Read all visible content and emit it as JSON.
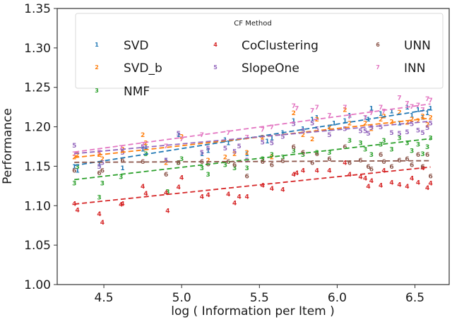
{
  "chart_data": {
    "type": "scatter",
    "title": "",
    "xlabel": "log ( Information per Item )",
    "ylabel": "Performance",
    "xlim": [
      4.2,
      6.72
    ],
    "ylim": [
      1.0,
      1.35
    ],
    "xticks": [
      4.5,
      5.0,
      5.5,
      6.0,
      6.5
    ],
    "xtick_labels": [
      "4.5",
      "5.0",
      "5.5",
      "6.0",
      "6.5"
    ],
    "yticks": [
      1.0,
      1.05,
      1.1,
      1.15,
      1.2,
      1.25,
      1.3,
      1.35
    ],
    "ytick_labels": [
      "1.00",
      "1.05",
      "1.10",
      "1.15",
      "1.20",
      "1.25",
      "1.30",
      "1.35"
    ],
    "grid": false,
    "legend": {
      "title": "CF Method",
      "placement": "top",
      "columns": 3
    },
    "series": [
      {
        "name": "SVD",
        "marker": "1",
        "color": "#1f77b4",
        "trend": {
          "x": [
            4.31,
            6.6
          ],
          "y": [
            1.151,
            1.222
          ]
        },
        "points": [
          [
            4.31,
            1.15
          ],
          [
            4.33,
            1.145
          ],
          [
            4.47,
            1.153
          ],
          [
            4.62,
            1.148
          ],
          [
            4.75,
            1.172
          ],
          [
            4.77,
            1.175
          ],
          [
            4.9,
            1.158
          ],
          [
            4.98,
            1.19
          ],
          [
            5.13,
            1.166
          ],
          [
            5.17,
            1.17
          ],
          [
            5.28,
            1.184
          ],
          [
            5.3,
            1.18
          ],
          [
            5.42,
            1.166
          ],
          [
            5.55,
            1.182
          ],
          [
            5.58,
            1.186
          ],
          [
            5.65,
            1.193
          ],
          [
            5.72,
            1.208
          ],
          [
            5.78,
            1.198
          ],
          [
            5.84,
            1.21
          ],
          [
            5.87,
            1.212
          ],
          [
            5.95,
            1.198
          ],
          [
            5.98,
            1.205
          ],
          [
            6.05,
            1.208
          ],
          [
            6.08,
            1.215
          ],
          [
            6.18,
            1.212
          ],
          [
            6.2,
            1.21
          ],
          [
            6.22,
            1.224
          ],
          [
            6.28,
            1.217
          ],
          [
            6.35,
            1.22
          ],
          [
            6.4,
            1.205
          ],
          [
            6.45,
            1.225
          ],
          [
            6.48,
            1.215
          ],
          [
            6.52,
            1.222
          ],
          [
            6.55,
            1.212
          ],
          [
            6.58,
            1.218
          ],
          [
            6.6,
            1.224
          ]
        ]
      },
      {
        "name": "SVD_b",
        "marker": "2",
        "color": "#ff7f0e",
        "trend": {
          "x": [
            4.31,
            6.6
          ],
          "y": [
            1.161,
            1.211
          ]
        },
        "points": [
          [
            4.31,
            1.162
          ],
          [
            4.33,
            1.165
          ],
          [
            4.47,
            1.165
          ],
          [
            4.49,
            1.16
          ],
          [
            4.62,
            1.172
          ],
          [
            4.75,
            1.19
          ],
          [
            4.77,
            1.18
          ],
          [
            4.9,
            1.155
          ],
          [
            5.0,
            1.188
          ],
          [
            5.17,
            1.158
          ],
          [
            5.28,
            1.162
          ],
          [
            5.34,
            1.166
          ],
          [
            5.42,
            1.168
          ],
          [
            5.52,
            1.187
          ],
          [
            5.58,
            1.162
          ],
          [
            5.72,
            1.218
          ],
          [
            5.78,
            1.19
          ],
          [
            5.84,
            1.185
          ],
          [
            5.87,
            1.21
          ],
          [
            5.95,
            1.2
          ],
          [
            6.05,
            1.222
          ],
          [
            6.08,
            1.205
          ],
          [
            6.18,
            1.205
          ],
          [
            6.22,
            1.198
          ],
          [
            6.28,
            1.21
          ],
          [
            6.3,
            1.214
          ],
          [
            6.35,
            1.207
          ],
          [
            6.4,
            1.219
          ],
          [
            6.45,
            1.206
          ],
          [
            6.48,
            1.21
          ],
          [
            6.52,
            1.208
          ],
          [
            6.55,
            1.214
          ],
          [
            6.58,
            1.203
          ],
          [
            6.6,
            1.212
          ]
        ]
      },
      {
        "name": "NMF",
        "marker": "3",
        "color": "#2ca02c",
        "trend": {
          "x": [
            4.31,
            6.6
          ],
          "y": [
            1.133,
            1.185
          ]
        },
        "points": [
          [
            4.31,
            1.129
          ],
          [
            4.33,
            1.15
          ],
          [
            4.47,
            1.111
          ],
          [
            4.49,
            1.129
          ],
          [
            4.61,
            1.137
          ],
          [
            4.77,
            1.166
          ],
          [
            4.91,
            1.118
          ],
          [
            4.98,
            1.155
          ],
          [
            5.0,
            1.16
          ],
          [
            5.13,
            1.148
          ],
          [
            5.17,
            1.14
          ],
          [
            5.28,
            1.152
          ],
          [
            5.34,
            1.148
          ],
          [
            5.42,
            1.148
          ],
          [
            5.52,
            1.16
          ],
          [
            5.58,
            1.165
          ],
          [
            5.65,
            1.162
          ],
          [
            5.72,
            1.17
          ],
          [
            5.78,
            1.165
          ],
          [
            5.87,
            1.168
          ],
          [
            5.95,
            1.168
          ],
          [
            6.08,
            1.183
          ],
          [
            6.15,
            1.18
          ],
          [
            6.18,
            1.172
          ],
          [
            6.22,
            1.165
          ],
          [
            6.28,
            1.178
          ],
          [
            6.3,
            1.183
          ],
          [
            6.35,
            1.172
          ],
          [
            6.4,
            1.186
          ],
          [
            6.45,
            1.18
          ],
          [
            6.48,
            1.17
          ],
          [
            6.52,
            1.178
          ],
          [
            6.55,
            1.166
          ],
          [
            6.58,
            1.175
          ],
          [
            6.6,
            1.186
          ]
        ]
      },
      {
        "name": "CoClustering",
        "marker": "4",
        "color": "#d62728",
        "trend": {
          "x": [
            4.31,
            6.6
          ],
          "y": [
            1.102,
            1.149
          ]
        },
        "points": [
          [
            4.31,
            1.103
          ],
          [
            4.33,
            1.095
          ],
          [
            4.47,
            1.09
          ],
          [
            4.49,
            1.079
          ],
          [
            4.61,
            1.102
          ],
          [
            4.62,
            1.103
          ],
          [
            4.75,
            1.125
          ],
          [
            4.77,
            1.116
          ],
          [
            4.9,
            1.117
          ],
          [
            4.91,
            1.094
          ],
          [
            4.98,
            1.124
          ],
          [
            5.0,
            1.136
          ],
          [
            5.13,
            1.112
          ],
          [
            5.17,
            1.114
          ],
          [
            5.3,
            1.115
          ],
          [
            5.34,
            1.104
          ],
          [
            5.37,
            1.112
          ],
          [
            5.42,
            1.112
          ],
          [
            5.52,
            1.126
          ],
          [
            5.58,
            1.122
          ],
          [
            5.65,
            1.121
          ],
          [
            5.72,
            1.14
          ],
          [
            5.74,
            1.142
          ],
          [
            5.78,
            1.145
          ],
          [
            5.87,
            1.145
          ],
          [
            5.95,
            1.145
          ],
          [
            6.05,
            1.155
          ],
          [
            6.08,
            1.14
          ],
          [
            6.15,
            1.137
          ],
          [
            6.18,
            1.135
          ],
          [
            6.2,
            1.125
          ],
          [
            6.22,
            1.132
          ],
          [
            6.28,
            1.126
          ],
          [
            6.3,
            1.145
          ],
          [
            6.35,
            1.13
          ],
          [
            6.4,
            1.127
          ],
          [
            6.45,
            1.125
          ],
          [
            6.48,
            1.135
          ],
          [
            6.52,
            1.13
          ],
          [
            6.55,
            1.148
          ],
          [
            6.58,
            1.123
          ],
          [
            6.6,
            1.129
          ]
        ]
      },
      {
        "name": "SlopeOne",
        "marker": "5",
        "color": "#9467bd",
        "trend": {
          "x": [
            4.31,
            6.6
          ],
          "y": [
            1.166,
            1.207
          ]
        },
        "points": [
          [
            4.31,
            1.177
          ],
          [
            4.47,
            1.15
          ],
          [
            4.49,
            1.155
          ],
          [
            4.62,
            1.168
          ],
          [
            4.75,
            1.175
          ],
          [
            4.9,
            1.158
          ],
          [
            4.98,
            1.192
          ],
          [
            5.13,
            1.168
          ],
          [
            5.17,
            1.173
          ],
          [
            5.28,
            1.173
          ],
          [
            5.34,
            1.169
          ],
          [
            5.37,
            1.176
          ],
          [
            5.42,
            1.158
          ],
          [
            5.52,
            1.181
          ],
          [
            5.58,
            1.18
          ],
          [
            5.65,
            1.188
          ],
          [
            5.72,
            1.204
          ],
          [
            5.78,
            1.195
          ],
          [
            5.84,
            1.205
          ],
          [
            5.87,
            1.198
          ],
          [
            5.95,
            1.19
          ],
          [
            6.05,
            1.198
          ],
          [
            6.15,
            1.195
          ],
          [
            6.18,
            1.195
          ],
          [
            6.2,
            1.192
          ],
          [
            6.22,
            1.199
          ],
          [
            6.28,
            1.2
          ],
          [
            6.35,
            1.193
          ],
          [
            6.4,
            1.192
          ],
          [
            6.45,
            1.194
          ],
          [
            6.48,
            1.204
          ],
          [
            6.52,
            1.196
          ],
          [
            6.55,
            1.193
          ],
          [
            6.58,
            1.199
          ],
          [
            6.6,
            1.205
          ]
        ]
      },
      {
        "name": "UNN",
        "marker": "6",
        "color": "#8c564b",
        "trend": {
          "x": [
            4.31,
            6.6
          ],
          "y": [
            1.155,
            1.157
          ]
        },
        "points": [
          [
            4.31,
            1.145
          ],
          [
            4.47,
            1.142
          ],
          [
            4.49,
            1.145
          ],
          [
            4.62,
            1.158
          ],
          [
            4.75,
            1.156
          ],
          [
            4.9,
            1.14
          ],
          [
            4.98,
            1.155
          ],
          [
            5.13,
            1.156
          ],
          [
            5.17,
            1.153
          ],
          [
            5.3,
            1.156
          ],
          [
            5.34,
            1.152
          ],
          [
            5.42,
            1.138
          ],
          [
            5.52,
            1.156
          ],
          [
            5.58,
            1.152
          ],
          [
            5.65,
            1.157
          ],
          [
            5.72,
            1.175
          ],
          [
            5.78,
            1.168
          ],
          [
            5.84,
            1.155
          ],
          [
            5.87,
            1.166
          ],
          [
            5.95,
            1.16
          ],
          [
            6.05,
            1.175
          ],
          [
            6.08,
            1.155
          ],
          [
            6.15,
            1.158
          ],
          [
            6.2,
            1.15
          ],
          [
            6.22,
            1.147
          ],
          [
            6.28,
            1.165
          ],
          [
            6.3,
            1.156
          ],
          [
            6.35,
            1.15
          ],
          [
            6.4,
            1.158
          ],
          [
            6.45,
            1.16
          ],
          [
            6.48,
            1.152
          ],
          [
            6.52,
            1.165
          ],
          [
            6.55,
            1.15
          ],
          [
            6.58,
            1.165
          ],
          [
            6.6,
            1.138
          ]
        ]
      },
      {
        "name": "INN",
        "marker": "7",
        "color": "#e377c2",
        "trend": {
          "x": [
            4.31,
            6.6
          ],
          "y": [
            1.168,
            1.229
          ]
        },
        "points": [
          [
            4.31,
            1.166
          ],
          [
            4.47,
            1.168
          ],
          [
            4.61,
            1.174
          ],
          [
            4.75,
            1.178
          ],
          [
            4.9,
            1.176
          ],
          [
            5.0,
            1.185
          ],
          [
            5.13,
            1.19
          ],
          [
            5.3,
            1.193
          ],
          [
            5.42,
            1.187
          ],
          [
            5.52,
            1.197
          ],
          [
            5.58,
            1.2
          ],
          [
            5.72,
            1.227
          ],
          [
            5.74,
            1.224
          ],
          [
            5.84,
            1.221
          ],
          [
            5.87,
            1.225
          ],
          [
            5.95,
            1.215
          ],
          [
            6.05,
            1.225
          ],
          [
            6.08,
            1.213
          ],
          [
            6.18,
            1.212
          ],
          [
            6.22,
            1.218
          ],
          [
            6.28,
            1.225
          ],
          [
            6.3,
            1.22
          ],
          [
            6.4,
            1.237
          ],
          [
            6.45,
            1.23
          ],
          [
            6.48,
            1.226
          ],
          [
            6.52,
            1.228
          ],
          [
            6.55,
            1.222
          ],
          [
            6.58,
            1.236
          ],
          [
            6.6,
            1.234
          ]
        ]
      }
    ]
  }
}
